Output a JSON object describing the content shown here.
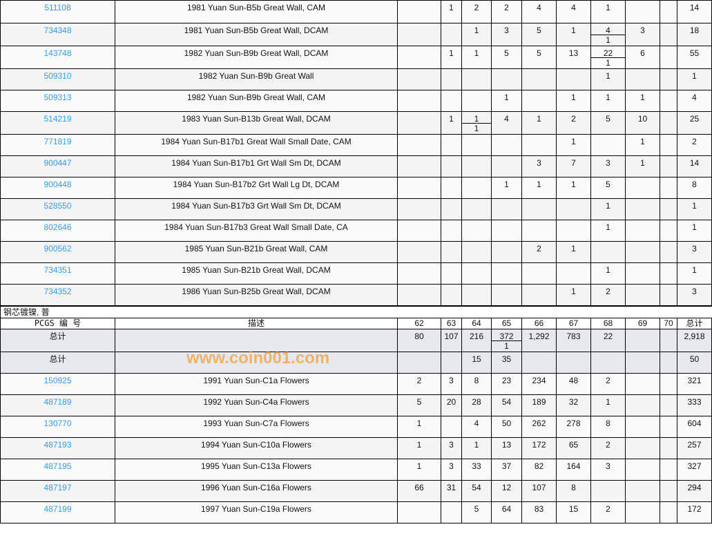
{
  "grade_headers": [
    "62",
    "63",
    "64",
    "65",
    "66",
    "67",
    "68",
    "69",
    "70"
  ],
  "total_label": "总计",
  "section1": {
    "rows": [
      {
        "pcgs": "511108",
        "desc": "1981 Yuan Sun-B5b Great Wall, CAM",
        "vals": [
          "",
          "1",
          "2",
          "2",
          "4",
          "4",
          "1",
          "",
          ""
        ],
        "total": "14"
      },
      {
        "pcgs": "734348",
        "desc": "1981 Yuan Sun-B5b Great Wall, DCAM",
        "vals": [
          "",
          "",
          "1",
          "3",
          "5",
          "1",
          [
            "4",
            "1"
          ],
          "3",
          ""
        ],
        "total": "18"
      },
      {
        "pcgs": "143748",
        "desc": "1982 Yuan Sun-B9b Great Wall, DCAM",
        "vals": [
          "",
          "1",
          "1",
          "5",
          "5",
          "13",
          [
            "22",
            "1"
          ],
          "6",
          ""
        ],
        "total": "55"
      },
      {
        "pcgs": "509310",
        "desc": "1982 Yuan Sun-B9b Great Wall",
        "vals": [
          "",
          "",
          "",
          "",
          "",
          "",
          "1",
          "",
          ""
        ],
        "total": "1"
      },
      {
        "pcgs": "509313",
        "desc": "1982 Yuan Sun-B9b Great Wall, CAM",
        "vals": [
          "",
          "",
          "",
          "1",
          "",
          "1",
          "1",
          "1",
          ""
        ],
        "total": "4"
      },
      {
        "pcgs": "514219",
        "desc": "1983 Yuan Sun-B13b Great Wall, DCAM",
        "vals": [
          "",
          "1",
          [
            "1",
            "1"
          ],
          "4",
          "1",
          "2",
          "5",
          "10",
          ""
        ],
        "total": "25"
      },
      {
        "pcgs": "771819",
        "desc": "1984 Yuan Sun-B17b1 Great Wall Small Date, CAM",
        "vals": [
          "",
          "",
          "",
          "",
          "",
          "1",
          "",
          "1",
          ""
        ],
        "total": "2"
      },
      {
        "pcgs": "900447",
        "desc": "1984 Yuan Sun-B17b1 Grt Wall Sm Dt, DCAM",
        "vals": [
          "",
          "",
          "",
          "",
          "3",
          "7",
          "3",
          "1",
          ""
        ],
        "total": "14"
      },
      {
        "pcgs": "900448",
        "desc": "1984 Yuan Sun-B17b2 Grt Wall Lg Dt, DCAM",
        "vals": [
          "",
          "",
          "",
          "1",
          "1",
          "1",
          "5",
          "",
          ""
        ],
        "total": "8"
      },
      {
        "pcgs": "528550",
        "desc": "1984 Yuan Sun-B17b3 Grt Wall Sm Dt, DCAM",
        "vals": [
          "",
          "",
          "",
          "",
          "",
          "",
          "1",
          "",
          ""
        ],
        "total": "1"
      },
      {
        "pcgs": "802646",
        "desc": "1984 Yuan Sun-B17b3 Great Wall Small Date, CA",
        "vals": [
          "",
          "",
          "",
          "",
          "",
          "",
          "1",
          "",
          ""
        ],
        "total": "1"
      },
      {
        "pcgs": "900562",
        "desc": "1985 Yuan Sun-B21b Great Wall, CAM",
        "vals": [
          "",
          "",
          "",
          "",
          "2",
          "1",
          "",
          "",
          ""
        ],
        "total": "3"
      },
      {
        "pcgs": "734351",
        "desc": "1985 Yuan Sun-B21b Great Wall, DCAM",
        "vals": [
          "",
          "",
          "",
          "",
          "",
          "",
          "1",
          "",
          ""
        ],
        "total": "1"
      },
      {
        "pcgs": "734352",
        "desc": "1986 Yuan Sun-B25b Great Wall, DCAM",
        "vals": [
          "",
          "",
          "",
          "",
          "",
          "1",
          "2",
          "",
          ""
        ],
        "total": "3"
      }
    ]
  },
  "section2": {
    "title": "钢芯镀镍, 普",
    "header": {
      "pcgs": "PCGS 编 号",
      "desc": "描述",
      "total": "总计"
    },
    "totals": [
      {
        "label": "总计",
        "vals": [
          "80",
          "107",
          "216",
          [
            "372",
            "1"
          ],
          "1,292",
          "783",
          "22",
          "",
          ""
        ],
        "total": "2,918"
      },
      {
        "label": "总计",
        "vals": [
          "",
          "",
          "15",
          "35",
          "",
          "",
          "",
          "",
          ""
        ],
        "total": "50"
      }
    ],
    "rows": [
      {
        "pcgs": "150925",
        "desc": "1991 Yuan Sun-C1a Flowers",
        "vals": [
          "2",
          "3",
          "8",
          "23",
          "234",
          "48",
          "2",
          "",
          ""
        ],
        "total": "321"
      },
      {
        "pcgs": "487189",
        "desc": "1992 Yuan Sun-C4a Flowers",
        "vals": [
          "5",
          "20",
          "28",
          "54",
          "189",
          "32",
          "1",
          "",
          ""
        ],
        "total": "333"
      },
      {
        "pcgs": "130770",
        "desc": "1993 Yuan Sun-C7a Flowers",
        "vals": [
          "1",
          "",
          "4",
          "50",
          "262",
          "278",
          "8",
          "",
          ""
        ],
        "total": "604"
      },
      {
        "pcgs": "487193",
        "desc": "1994 Yuan Sun-C10a Flowers",
        "vals": [
          "1",
          "3",
          "1",
          "13",
          "172",
          "65",
          "2",
          "",
          ""
        ],
        "total": "257"
      },
      {
        "pcgs": "487195",
        "desc": "1995 Yuan Sun-C13a Flowers",
        "vals": [
          "1",
          "3",
          "33",
          "37",
          "82",
          "164",
          "3",
          "",
          ""
        ],
        "total": "327"
      },
      {
        "pcgs": "487197",
        "desc": "1996 Yuan Sun-C16a Flowers",
        "vals": [
          "66",
          "31",
          "54",
          "12",
          "107",
          "8",
          "",
          "",
          ""
        ],
        "total": "294"
      },
      {
        "pcgs": "487199",
        "desc": "1997 Yuan Sun-C19a Flowers",
        "vals": [
          "",
          "",
          "5",
          "64",
          "83",
          "15",
          "2",
          "",
          ""
        ],
        "total": "172"
      }
    ]
  },
  "watermark": "www.coin001.com",
  "colors": {
    "link": "#3a9ae8",
    "total_row_bg": "#e6eaef",
    "row_bg_a": "#fafafa",
    "row_bg_b": "#f4f4f4",
    "watermark": "#f5a03c"
  }
}
